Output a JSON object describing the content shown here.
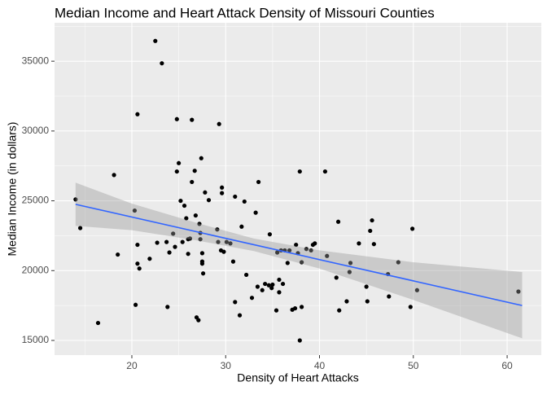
{
  "chart_data": {
    "type": "scatter",
    "title": "Median Income and Heart Attack Density of Missouri Counties",
    "x_label": "Density of Heart Attacks",
    "y_label": "Median Income (in dollars)",
    "xlim": [
      11.76,
      63.64
    ],
    "ylim": [
      13950,
      37750
    ],
    "xticks": [
      20,
      30,
      40,
      50,
      60
    ],
    "yticks": [
      15000,
      20000,
      25000,
      30000,
      35000
    ],
    "grid": true,
    "color": "#000000",
    "x": [
      14.0,
      14.5,
      16.4,
      18.1,
      18.5,
      20.3,
      20.4,
      20.6,
      20.6,
      20.6,
      20.8,
      21.9,
      22.5,
      22.7,
      23.2,
      23.7,
      23.8,
      24.0,
      24.4,
      24.6,
      24.8,
      24.8,
      25.0,
      25.2,
      25.4,
      25.6,
      25.8,
      26.0,
      26.0,
      26.2,
      26.4,
      26.4,
      26.7,
      26.8,
      26.9,
      27.1,
      27.2,
      27.3,
      27.3,
      27.4,
      27.5,
      27.5,
      27.5,
      27.6,
      27.8,
      28.2,
      29.1,
      29.2,
      29.3,
      29.5,
      29.6,
      29.6,
      29.8,
      30.1,
      30.5,
      30.8,
      31.0,
      31.0,
      31.5,
      31.7,
      32.0,
      32.2,
      32.8,
      33.2,
      33.4,
      33.5,
      33.9,
      34.2,
      34.6,
      34.7,
      34.9,
      35.0,
      35.4,
      35.5,
      35.7,
      35.7,
      35.9,
      36.1,
      36.3,
      36.6,
      36.8,
      37.1,
      37.4,
      37.5,
      37.7,
      37.9,
      37.9,
      38.1,
      38.1,
      38.6,
      39.1,
      39.3,
      39.5,
      40.6,
      40.8,
      41.8,
      42.0,
      42.1,
      42.9,
      43.2,
      43.3,
      44.2,
      45.0,
      45.1,
      45.4,
      45.6,
      45.8,
      47.3,
      47.4,
      48.4,
      49.7,
      49.9,
      50.4,
      61.2
    ],
    "values": [
      25100,
      23050,
      16250,
      26850,
      21150,
      24300,
      17550,
      31200,
      21850,
      20500,
      20150,
      20850,
      36450,
      22000,
      34850,
      22050,
      17400,
      21300,
      22650,
      21700,
      30850,
      27100,
      27700,
      25000,
      22050,
      24650,
      23750,
      22250,
      21200,
      22300,
      30800,
      26350,
      27150,
      23950,
      16650,
      16450,
      23350,
      22700,
      22250,
      28050,
      21250,
      20650,
      20500,
      19800,
      25600,
      25050,
      22950,
      22050,
      30500,
      21450,
      25550,
      25950,
      21350,
      22050,
      21950,
      20650,
      17750,
      25300,
      16800,
      23150,
      24950,
      19700,
      18050,
      24150,
      18850,
      26350,
      18600,
      19050,
      18950,
      22600,
      18750,
      19000,
      17150,
      21300,
      18450,
      19350,
      21450,
      19050,
      21450,
      20550,
      21450,
      17200,
      17300,
      21850,
      21250,
      27100,
      15000,
      17400,
      20600,
      21550,
      21450,
      21850,
      21950,
      27100,
      21050,
      19500,
      23500,
      17150,
      17800,
      19900,
      20550,
      21950,
      18850,
      17800,
      22850,
      23600,
      21900,
      19750,
      18150,
      20600,
      17400,
      23000,
      18600,
      18500
    ],
    "fit": {
      "color": "#3366ff",
      "x": [
        14,
        61.6
      ],
      "values": [
        24750,
        17500
      ]
    },
    "band": {
      "color": "#999999",
      "x": [
        14,
        20,
        27,
        33,
        40,
        50,
        61.6
      ],
      "lower": [
        23200,
        22900,
        22150,
        21400,
        20150,
        17900,
        15150
      ],
      "upper": [
        26300,
        24800,
        23400,
        22300,
        21450,
        20600,
        19900
      ]
    }
  }
}
